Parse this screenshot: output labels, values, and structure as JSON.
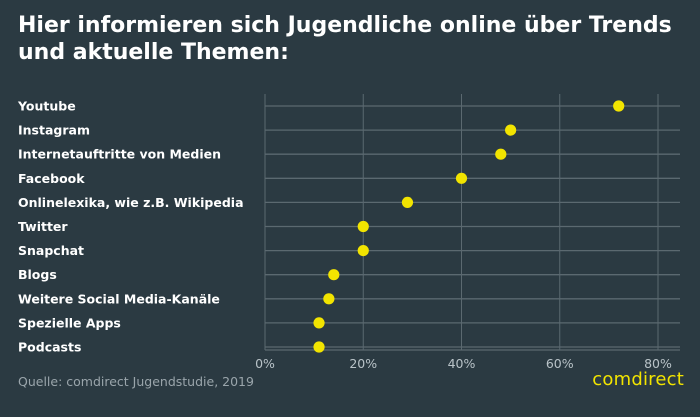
{
  "title": "Hier informieren sich Jugendliche online über Trends und aktuelle Themen:",
  "source": "Quelle: comdirect Jugendstudie, 2019",
  "logo": "comdirect",
  "colors": {
    "background": "#2b3a42",
    "dot": "#f2e400",
    "grid": "#5b6970",
    "text": "#ffffff",
    "muted": "#9aa5ab"
  },
  "chart_data": {
    "type": "scatter",
    "orientation": "horizontal",
    "categories": [
      "Youtube",
      "Instagram",
      "Internetauftritte von Medien",
      "Facebook",
      "Onlinelexika, wie z.B. Wikipedia",
      "Twitter",
      "Snapchat",
      "Blogs",
      "Weitere Social Media-Kanäle",
      "Spezielle Apps",
      "Podcasts"
    ],
    "values": [
      72,
      50,
      48,
      40,
      29,
      20,
      20,
      14,
      13,
      11,
      11
    ],
    "xlim": [
      0,
      80
    ],
    "xticks": [
      0,
      20,
      40,
      60,
      80
    ],
    "xtick_labels": [
      "0%",
      "20%",
      "40%",
      "60%",
      "80%"
    ],
    "grid": true,
    "legend": "none"
  }
}
